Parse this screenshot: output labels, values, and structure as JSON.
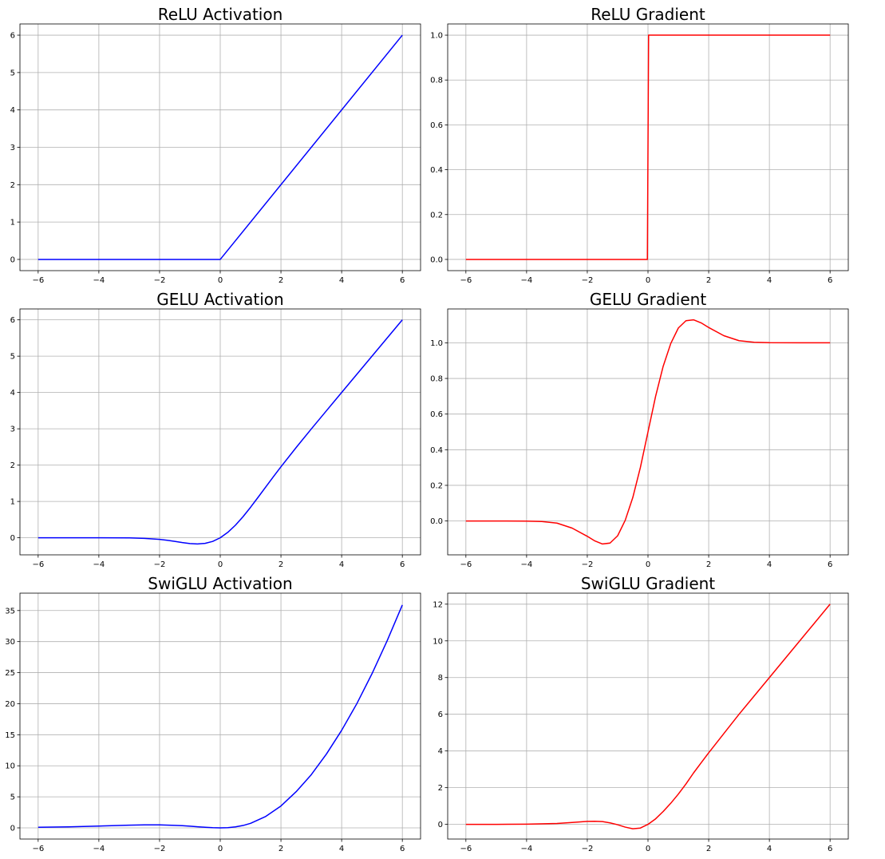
{
  "figure": {
    "colors": {
      "activation": "#0000ff",
      "gradient": "#ff0000"
    }
  },
  "chart_data": [
    {
      "type": "line",
      "title": "ReLU Activation",
      "xlim": [
        -6.6,
        6.6
      ],
      "ylim": [
        -0.3,
        6.3
      ],
      "xticks": [
        -6,
        -4,
        -2,
        0,
        2,
        4,
        6
      ],
      "xtick_labels": [
        "−6",
        "−4",
        "−2",
        "0",
        "2",
        "4",
        "6"
      ],
      "yticks": [
        0,
        1,
        2,
        3,
        4,
        5,
        6
      ],
      "ytick_labels": [
        "0",
        "1",
        "2",
        "3",
        "4",
        "5",
        "6"
      ],
      "grid": true,
      "color": "#0000ff",
      "series": [
        {
          "x": [
            -6,
            0,
            6
          ],
          "y": [
            0,
            0,
            6
          ]
        }
      ]
    },
    {
      "type": "line",
      "title": "ReLU Gradient",
      "xlim": [
        -6.6,
        6.6
      ],
      "ylim": [
        -0.05,
        1.05
      ],
      "xticks": [
        -6,
        -4,
        -2,
        0,
        2,
        4,
        6
      ],
      "xtick_labels": [
        "−6",
        "−4",
        "−2",
        "0",
        "2",
        "4",
        "6"
      ],
      "yticks": [
        0,
        0.2,
        0.4,
        0.6,
        0.8,
        1.0
      ],
      "ytick_labels": [
        "0.0",
        "0.2",
        "0.4",
        "0.6",
        "0.8",
        "1.0"
      ],
      "grid": true,
      "color": "#ff0000",
      "series": [
        {
          "x": [
            -6,
            -0.02,
            0.02,
            6
          ],
          "y": [
            0,
            0,
            1,
            1
          ]
        }
      ]
    },
    {
      "type": "line",
      "title": "GELU Activation",
      "xlim": [
        -6.6,
        6.6
      ],
      "ylim": [
        -0.47,
        6.3
      ],
      "xticks": [
        -6,
        -4,
        -2,
        0,
        2,
        4,
        6
      ],
      "xtick_labels": [
        "−6",
        "−4",
        "−2",
        "0",
        "2",
        "4",
        "6"
      ],
      "yticks": [
        0,
        1,
        2,
        3,
        4,
        5,
        6
      ],
      "ytick_labels": [
        "0",
        "1",
        "2",
        "3",
        "4",
        "5",
        "6"
      ],
      "grid": true,
      "color": "#0000ff",
      "series": [
        {
          "x": [
            -6,
            -5,
            -4,
            -3,
            -2.5,
            -2,
            -1.75,
            -1.5,
            -1.25,
            -1,
            -0.75,
            -0.5,
            -0.25,
            0,
            0.25,
            0.5,
            0.75,
            1,
            1.25,
            1.5,
            1.75,
            2,
            2.5,
            3,
            3.5,
            4,
            5,
            6
          ],
          "y": [
            0,
            0,
            -0.0001,
            -0.004,
            -0.016,
            -0.045,
            -0.07,
            -0.1,
            -0.132,
            -0.159,
            -0.17,
            -0.154,
            -0.1,
            0,
            0.15,
            0.346,
            0.58,
            0.841,
            1.118,
            1.4,
            1.68,
            1.955,
            2.484,
            2.996,
            3.499,
            4.0,
            5.0,
            6.0
          ]
        }
      ]
    },
    {
      "type": "line",
      "title": "GELU Gradient",
      "xlim": [
        -6.6,
        6.6
      ],
      "ylim": [
        -0.19,
        1.19
      ],
      "xticks": [
        -6,
        -4,
        -2,
        0,
        2,
        4,
        6
      ],
      "xtick_labels": [
        "−6",
        "−4",
        "−2",
        "0",
        "2",
        "4",
        "6"
      ],
      "yticks": [
        0,
        0.2,
        0.4,
        0.6,
        0.8,
        1.0
      ],
      "ytick_labels": [
        "0.0",
        "0.2",
        "0.4",
        "0.6",
        "0.8",
        "1.0"
      ],
      "grid": true,
      "color": "#ff0000",
      "series": [
        {
          "x": [
            -6,
            -5,
            -4,
            -3.5,
            -3,
            -2.5,
            -2,
            -1.75,
            -1.5,
            -1.25,
            -1,
            -0.75,
            -0.5,
            -0.25,
            0,
            0.25,
            0.5,
            0.75,
            1,
            1.25,
            1.5,
            1.75,
            2,
            2.5,
            3,
            3.5,
            4,
            5,
            6
          ],
          "y": [
            0,
            0,
            -0.0005,
            -0.003,
            -0.012,
            -0.04,
            -0.086,
            -0.112,
            -0.129,
            -0.124,
            -0.083,
            0.004,
            0.132,
            0.301,
            0.5,
            0.699,
            0.868,
            0.996,
            1.083,
            1.124,
            1.129,
            1.112,
            1.086,
            1.04,
            1.012,
            1.003,
            1.0005,
            1.0,
            1.0
          ]
        }
      ]
    },
    {
      "type": "line",
      "title": "SwiGLU Activation",
      "xlim": [
        -6.6,
        6.6
      ],
      "ylim": [
        -1.8,
        37.8
      ],
      "xticks": [
        -6,
        -4,
        -2,
        0,
        2,
        4,
        6
      ],
      "xtick_labels": [
        "−6",
        "−4",
        "−2",
        "0",
        "2",
        "4",
        "6"
      ],
      "yticks": [
        0,
        5,
        10,
        15,
        20,
        25,
        30,
        35
      ],
      "ytick_labels": [
        "0",
        "5",
        "10",
        "15",
        "20",
        "25",
        "30",
        "35"
      ],
      "grid": true,
      "color": "#0000ff",
      "series": [
        {
          "x": [
            -6,
            -5,
            -4,
            -3,
            -2.5,
            -2,
            -1.5,
            -1.25,
            -1,
            -0.75,
            -0.5,
            -0.25,
            0,
            0.25,
            0.5,
            0.75,
            1,
            1.5,
            2,
            2.5,
            3,
            3.5,
            4,
            4.5,
            5,
            5.5,
            6
          ],
          "y": [
            0.089,
            0.167,
            0.288,
            0.427,
            0.474,
            0.477,
            0.409,
            0.349,
            0.269,
            0.181,
            0.097,
            0.028,
            0,
            0.036,
            0.156,
            0.381,
            0.731,
            1.846,
            3.523,
            5.82,
            8.571,
            11.9,
            15.71,
            20.0,
            24.83,
            30.14,
            35.9
          ]
        }
      ]
    },
    {
      "type": "line",
      "title": "SwiGLU Gradient",
      "xlim": [
        -6.6,
        6.6
      ],
      "ylim": [
        -0.8,
        12.6
      ],
      "xticks": [
        -6,
        -4,
        -2,
        0,
        2,
        4,
        6
      ],
      "xtick_labels": [
        "−6",
        "−4",
        "−2",
        "0",
        "2",
        "4",
        "6"
      ],
      "yticks": [
        0,
        2,
        4,
        6,
        8,
        10,
        12
      ],
      "ytick_labels": [
        "0",
        "2",
        "4",
        "6",
        "8",
        "10",
        "12"
      ],
      "grid": true,
      "color": "#ff0000",
      "series": [
        {
          "x": [
            -6,
            -5,
            -4,
            -3,
            -2.5,
            -2,
            -1.75,
            -1.5,
            -1.25,
            -1,
            -0.75,
            -0.5,
            -0.25,
            0,
            0.25,
            0.5,
            0.75,
            1,
            1.25,
            1.5,
            1.75,
            2,
            2.5,
            3,
            4,
            5,
            6
          ],
          "y": [
            0,
            0,
            0.01,
            0.05,
            0.1,
            0.16,
            0.17,
            0.15,
            0.08,
            -0.02,
            -0.15,
            -0.24,
            -0.2,
            0,
            0.3,
            0.7,
            1.15,
            1.65,
            2.2,
            2.8,
            3.35,
            3.9,
            4.95,
            6.0,
            8.0,
            10.0,
            12.0
          ]
        }
      ]
    }
  ]
}
